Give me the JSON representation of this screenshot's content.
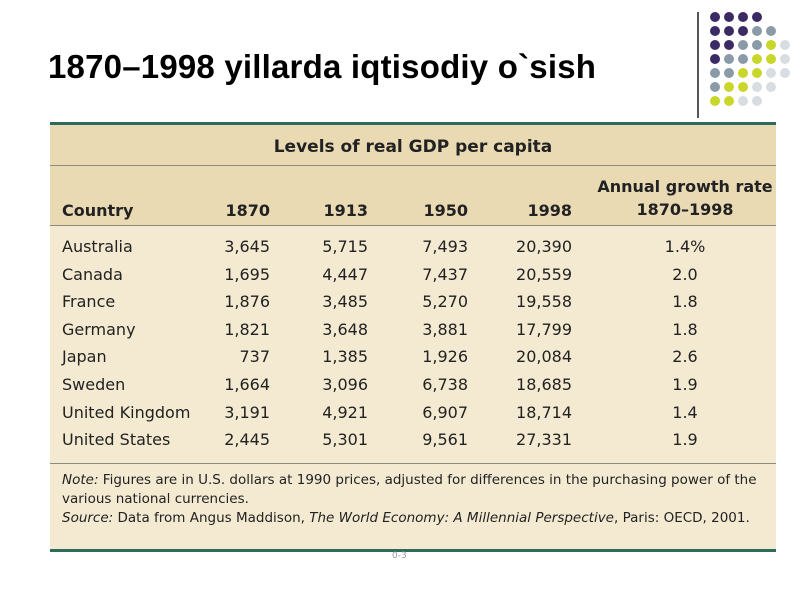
{
  "slide": {
    "title": "1870–1998 yillarda iqtisodiy o`sish",
    "page_mark": "0-3"
  },
  "decor": {
    "colors": {
      "purple": "#3b2a63",
      "gray": "#8a9aa6",
      "lime": "#c9d62a",
      "light": "#d8dde2"
    }
  },
  "table": {
    "caption": "Levels of real GDP per capita",
    "headers": {
      "country": "Country",
      "y1870": "1870",
      "y1913": "1913",
      "y1950": "1950",
      "y1998": "1998",
      "rate_line1": "Annual growth rate",
      "rate_line2": "1870–1998"
    },
    "rows": [
      {
        "country": "Australia",
        "y1870": "3,645",
        "y1913": "5,715",
        "y1950": "7,493",
        "y1998": "20,390",
        "rate": "1.4%"
      },
      {
        "country": "Canada",
        "y1870": "1,695",
        "y1913": "4,447",
        "y1950": "7,437",
        "y1998": "20,559",
        "rate": "2.0"
      },
      {
        "country": "France",
        "y1870": "1,876",
        "y1913": "3,485",
        "y1950": "5,270",
        "y1998": "19,558",
        "rate": "1.8"
      },
      {
        "country": "Germany",
        "y1870": "1,821",
        "y1913": "3,648",
        "y1950": "3,881",
        "y1998": "17,799",
        "rate": "1.8"
      },
      {
        "country": "Japan",
        "y1870": "737",
        "y1913": "1,385",
        "y1950": "1,926",
        "y1998": "20,084",
        "rate": "2.6"
      },
      {
        "country": "Sweden",
        "y1870": "1,664",
        "y1913": "3,096",
        "y1950": "6,738",
        "y1998": "18,685",
        "rate": "1.9"
      },
      {
        "country": "United Kingdom",
        "y1870": "3,191",
        "y1913": "4,921",
        "y1950": "6,907",
        "y1998": "18,714",
        "rate": "1.4"
      },
      {
        "country": "United States",
        "y1870": "2,445",
        "y1913": "5,301",
        "y1950": "9,561",
        "y1998": "27,331",
        "rate": "1.9"
      }
    ],
    "note_label": "Note:",
    "note_text": " Figures are in U.S. dollars at 1990 prices, adjusted for differences in the purchasing power of the various national currencies.",
    "source_label": "Source:",
    "source_pre": " Data from Angus Maddison, ",
    "source_book": "The World Economy: A Millennial Perspective",
    "source_post": ", Paris: OECD, 2001."
  }
}
